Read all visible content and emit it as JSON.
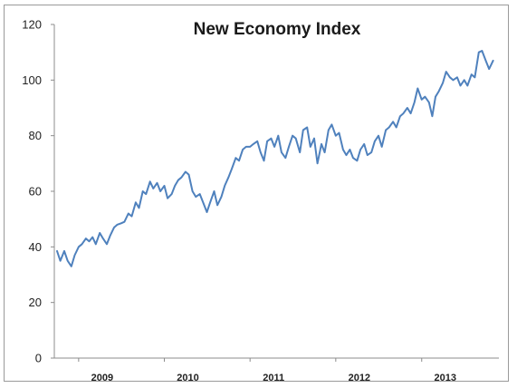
{
  "chart_data": {
    "type": "line",
    "title": "New Economy Index",
    "xlabel": "",
    "ylabel": "",
    "ylim": [
      0,
      120
    ],
    "yticks": [
      0,
      20,
      40,
      60,
      80,
      100,
      120
    ],
    "xlim": [
      "2008-10-01",
      "2013-09-15"
    ],
    "xticks": [
      {
        "label": "2009",
        "date": "2009-01-01"
      },
      {
        "label": "2010",
        "date": "2010-01-01"
      },
      {
        "label": "2011",
        "date": "2011-01-01"
      },
      {
        "label": "2012",
        "date": "2012-01-01"
      },
      {
        "label": "2013",
        "date": "2013-01-01"
      }
    ],
    "grid": false,
    "legend": "none",
    "line_color": "#4f81bd",
    "series": [
      {
        "name": "",
        "points": [
          [
            "2008-10-01",
            38.5
          ],
          [
            "2008-10-15",
            35
          ],
          [
            "2008-11-01",
            38.5
          ],
          [
            "2008-11-15",
            35
          ],
          [
            "2008-12-01",
            33
          ],
          [
            "2008-12-15",
            37
          ],
          [
            "2009-01-01",
            40
          ],
          [
            "2009-01-15",
            41
          ],
          [
            "2009-02-01",
            43
          ],
          [
            "2009-02-15",
            42
          ],
          [
            "2009-03-01",
            43.5
          ],
          [
            "2009-03-15",
            41
          ],
          [
            "2009-04-01",
            45
          ],
          [
            "2009-04-15",
            43
          ],
          [
            "2009-05-01",
            41
          ],
          [
            "2009-05-15",
            44
          ],
          [
            "2009-06-01",
            47
          ],
          [
            "2009-06-15",
            48
          ],
          [
            "2009-07-01",
            48.5
          ],
          [
            "2009-07-15",
            49
          ],
          [
            "2009-08-01",
            52
          ],
          [
            "2009-08-15",
            51
          ],
          [
            "2009-09-01",
            56
          ],
          [
            "2009-09-15",
            54
          ],
          [
            "2009-10-01",
            60
          ],
          [
            "2009-10-15",
            59
          ],
          [
            "2009-11-01",
            63.5
          ],
          [
            "2009-11-15",
            61
          ],
          [
            "2009-12-01",
            63
          ],
          [
            "2009-12-15",
            60
          ],
          [
            "2010-01-01",
            62
          ],
          [
            "2010-01-15",
            57.5
          ],
          [
            "2010-02-01",
            59
          ],
          [
            "2010-02-15",
            62
          ],
          [
            "2010-03-01",
            64
          ],
          [
            "2010-03-15",
            65
          ],
          [
            "2010-04-01",
            67
          ],
          [
            "2010-04-15",
            66
          ],
          [
            "2010-05-01",
            60
          ],
          [
            "2010-05-15",
            58
          ],
          [
            "2010-06-01",
            59
          ],
          [
            "2010-06-15",
            56
          ],
          [
            "2010-07-01",
            52.5
          ],
          [
            "2010-07-15",
            56
          ],
          [
            "2010-08-01",
            60
          ],
          [
            "2010-08-15",
            55
          ],
          [
            "2010-09-01",
            58
          ],
          [
            "2010-09-15",
            62
          ],
          [
            "2010-10-01",
            65
          ],
          [
            "2010-10-15",
            68
          ],
          [
            "2010-11-01",
            72
          ],
          [
            "2010-11-15",
            71
          ],
          [
            "2010-12-01",
            75
          ],
          [
            "2010-12-15",
            76
          ],
          [
            "2011-01-01",
            76
          ],
          [
            "2011-01-15",
            77
          ],
          [
            "2011-02-01",
            78
          ],
          [
            "2011-02-15",
            74
          ],
          [
            "2011-03-01",
            71
          ],
          [
            "2011-03-15",
            78
          ],
          [
            "2011-04-01",
            79
          ],
          [
            "2011-04-15",
            76
          ],
          [
            "2011-05-01",
            80
          ],
          [
            "2011-05-15",
            74
          ],
          [
            "2011-06-01",
            72
          ],
          [
            "2011-06-15",
            76
          ],
          [
            "2011-07-01",
            80
          ],
          [
            "2011-07-15",
            79
          ],
          [
            "2011-08-01",
            74
          ],
          [
            "2011-08-15",
            82
          ],
          [
            "2011-09-01",
            83
          ],
          [
            "2011-09-15",
            76
          ],
          [
            "2011-10-01",
            79
          ],
          [
            "2011-10-15",
            70
          ],
          [
            "2011-11-01",
            77
          ],
          [
            "2011-11-15",
            74
          ],
          [
            "2011-12-01",
            82
          ],
          [
            "2011-12-15",
            84
          ],
          [
            "2012-01-01",
            80
          ],
          [
            "2012-01-15",
            81
          ],
          [
            "2012-02-01",
            75
          ],
          [
            "2012-02-15",
            73
          ],
          [
            "2012-03-01",
            75
          ],
          [
            "2012-03-15",
            72
          ],
          [
            "2012-04-01",
            71
          ],
          [
            "2012-04-15",
            75
          ],
          [
            "2012-05-01",
            77
          ],
          [
            "2012-05-15",
            73
          ],
          [
            "2012-06-01",
            74
          ],
          [
            "2012-06-15",
            78
          ],
          [
            "2012-07-01",
            80
          ],
          [
            "2012-07-15",
            76
          ],
          [
            "2012-08-01",
            82
          ],
          [
            "2012-08-15",
            83
          ],
          [
            "2012-09-01",
            85
          ],
          [
            "2012-09-15",
            83
          ],
          [
            "2012-10-01",
            87
          ],
          [
            "2012-10-15",
            88
          ],
          [
            "2012-11-01",
            90
          ],
          [
            "2012-11-15",
            88
          ],
          [
            "2012-12-01",
            92
          ],
          [
            "2012-12-15",
            97
          ],
          [
            "2013-01-01",
            93
          ],
          [
            "2013-01-15",
            94
          ],
          [
            "2013-02-01",
            92
          ],
          [
            "2013-02-15",
            87
          ],
          [
            "2013-03-01",
            94
          ],
          [
            "2013-03-15",
            96
          ],
          [
            "2013-04-01",
            99
          ],
          [
            "2013-04-15",
            103
          ],
          [
            "2013-05-01",
            101
          ],
          [
            "2013-05-15",
            100
          ],
          [
            "2013-06-01",
            101
          ],
          [
            "2013-06-15",
            98
          ],
          [
            "2013-07-01",
            100
          ],
          [
            "2013-07-15",
            98
          ],
          [
            "2013-08-01",
            102
          ],
          [
            "2013-08-15",
            101
          ],
          [
            "2013-09-01",
            110
          ],
          [
            "2013-09-15",
            110.5
          ],
          [
            "2013-10-01",
            107
          ],
          [
            "2013-10-15",
            104
          ],
          [
            "2013-11-01",
            107
          ]
        ]
      }
    ]
  }
}
